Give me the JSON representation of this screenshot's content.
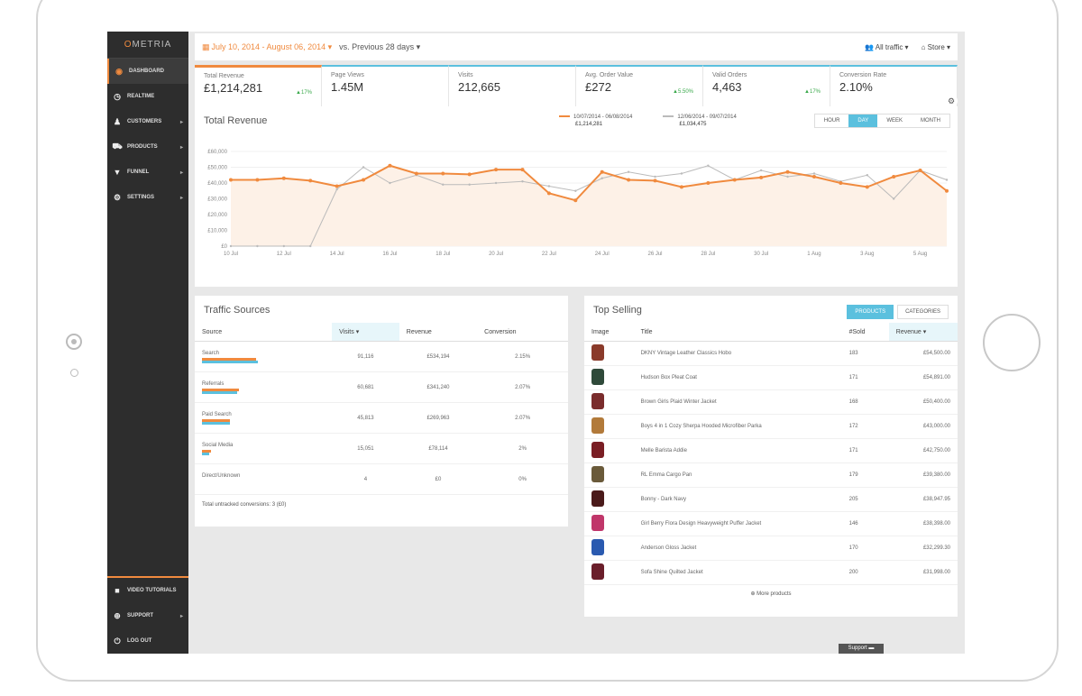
{
  "app": {
    "logo_prefix": "O",
    "logo_rest": "METRIA"
  },
  "sidebar": {
    "items": [
      {
        "label": "DASHBOARD",
        "icon": "dashboard-icon",
        "active": true,
        "caret": ""
      },
      {
        "label": "REALTIME",
        "icon": "clock-icon",
        "active": false,
        "caret": ""
      },
      {
        "label": "CUSTOMERS",
        "icon": "user-icon",
        "active": false,
        "caret": "▸"
      },
      {
        "label": "PRODUCTS",
        "icon": "cart-icon",
        "active": false,
        "caret": "▸"
      },
      {
        "label": "FUNNEL",
        "icon": "funnel-icon",
        "active": false,
        "caret": "▸"
      },
      {
        "label": "SETTINGS",
        "icon": "gear-icon",
        "active": false,
        "caret": "▸"
      }
    ],
    "bottom_items": [
      {
        "label": "VIDEO TUTORIALS",
        "icon": "video-icon",
        "caret": ""
      },
      {
        "label": "SUPPORT",
        "icon": "lifebuoy-icon",
        "caret": "▸"
      },
      {
        "label": "LOG OUT",
        "icon": "power-icon",
        "caret": ""
      }
    ]
  },
  "topbar": {
    "date_range": "July 10, 2014 - August 06, 2014 ▾",
    "comparison": "vs. Previous 28 days ▾",
    "traffic_filter": "All traffic ▾",
    "store_filter": "Store ▾"
  },
  "kpis": [
    {
      "label": "Total Revenue",
      "value": "£1,214,281",
      "change": "▲17%"
    },
    {
      "label": "Page Views",
      "value": "1.45M",
      "change": ""
    },
    {
      "label": "Visits",
      "value": "212,665",
      "change": ""
    },
    {
      "label": "Avg. Order Value",
      "value": "£272",
      "change": "▲5.50%"
    },
    {
      "label": "Valid Orders",
      "value": "4,463",
      "change": "▲17%"
    },
    {
      "label": "Conversion Rate",
      "value": "2.10%",
      "change": ""
    }
  ],
  "revenue_panel": {
    "title": "Total Revenue",
    "granularity": [
      {
        "label": "HOUR",
        "on": false
      },
      {
        "label": "DAY",
        "on": true
      },
      {
        "label": "WEEK",
        "on": false
      },
      {
        "label": "MONTH",
        "on": false
      }
    ],
    "legend": [
      {
        "range": "10/07/2014 - 06/08/2014",
        "total": "£1,214,281",
        "color": "#f08a3e"
      },
      {
        "range": "12/06/2014 - 09/07/2014",
        "total": "£1,034,475",
        "color": "#bbbbbb"
      }
    ]
  },
  "chart_data": {
    "type": "line",
    "title": "Total Revenue",
    "x": [
      "10 Jul",
      "11 Jul",
      "12 Jul",
      "13 Jul",
      "14 Jul",
      "15 Jul",
      "16 Jul",
      "17 Jul",
      "18 Jul",
      "19 Jul",
      "20 Jul",
      "21 Jul",
      "22 Jul",
      "23 Jul",
      "24 Jul",
      "25 Jul",
      "26 Jul",
      "27 Jul",
      "28 Jul",
      "29 Jul",
      "30 Jul",
      "31 Jul",
      "1 Aug",
      "2 Aug",
      "3 Aug",
      "4 Aug",
      "5 Aug",
      "6 Aug"
    ],
    "x_tick_labels": [
      "10 Jul",
      "12 Jul",
      "14 Jul",
      "16 Jul",
      "18 Jul",
      "20 Jul",
      "22 Jul",
      "24 Jul",
      "26 Jul",
      "28 Jul",
      "30 Jul",
      "1 Aug",
      "3 Aug",
      "5 Aug"
    ],
    "y_tick_labels": [
      "£0",
      "£10,000",
      "£20,000",
      "£30,000",
      "£40,000",
      "£50,000",
      "£60,000"
    ],
    "ylim": [
      0,
      60000
    ],
    "grid": true,
    "series": [
      {
        "name": "10/07/2014 - 06/08/2014",
        "color": "#f08a3e",
        "values": [
          42000,
          42000,
          43000,
          41500,
          38000,
          42000,
          51000,
          46000,
          46000,
          45500,
          48500,
          48500,
          33500,
          29000,
          47000,
          42000,
          41500,
          37500,
          40000,
          42000,
          43500,
          47000,
          44000,
          40000,
          37500,
          44000,
          48000,
          35000
        ]
      },
      {
        "name": "12/06/2014 - 09/07/2014",
        "color": "#bbbbbb",
        "values": [
          0,
          0,
          0,
          0,
          36000,
          50000,
          40000,
          45000,
          39000,
          39000,
          40000,
          41000,
          38000,
          35000,
          43000,
          47000,
          44000,
          46000,
          51000,
          42000,
          48000,
          44000,
          46000,
          41000,
          45000,
          30000,
          48000,
          42000
        ]
      }
    ]
  },
  "traffic_sources": {
    "title": "Traffic Sources",
    "headers": [
      "Source",
      "Visits ▾",
      "Revenue",
      "Conversion"
    ],
    "rows": [
      {
        "source": "Search",
        "visits": "91,116",
        "revenue": "£534,194",
        "conversion": "2.15%",
        "visit_share": 0.43,
        "revenue_share": 0.44
      },
      {
        "source": "Referrals",
        "visits": "60,681",
        "revenue": "£341,240",
        "conversion": "2.07%",
        "visit_share": 0.29,
        "revenue_share": 0.28
      },
      {
        "source": "Paid Search",
        "visits": "45,813",
        "revenue": "£269,963",
        "conversion": "2.07%",
        "visit_share": 0.22,
        "revenue_share": 0.22
      },
      {
        "source": "Social Media",
        "visits": "15,051",
        "revenue": "£78,114",
        "conversion": "2%",
        "visit_share": 0.07,
        "revenue_share": 0.06
      },
      {
        "source": "Direct/Unknown",
        "visits": "4",
        "revenue": "£0",
        "conversion": "0%",
        "visit_share": 0.0,
        "revenue_share": 0.0
      }
    ],
    "footer": "Total untracked conversions: 3 (£0)"
  },
  "top_selling": {
    "title": "Top Selling",
    "toggle": [
      {
        "label": "PRODUCTS",
        "on": true
      },
      {
        "label": "CATEGORIES",
        "on": false
      }
    ],
    "headers": [
      "Image",
      "Title",
      "#Sold",
      "Revenue ▾"
    ],
    "rows": [
      {
        "color": "#8a3a2a",
        "title": "DKNY Vintage Leather Classics Hobo",
        "sold": "183",
        "revenue": "£54,500.00"
      },
      {
        "color": "#2f4a3a",
        "title": "Hudson Box Pleat Coat",
        "sold": "171",
        "revenue": "£54,891.00"
      },
      {
        "color": "#7a2c2c",
        "title": "Brown Girls Plaid Winter Jacket",
        "sold": "168",
        "revenue": "£50,400.00"
      },
      {
        "color": "#b27a3a",
        "title": "Boys 4 in 1 Cozy Sherpa Hooded Microfiber Parka",
        "sold": "172",
        "revenue": "£43,000.00"
      },
      {
        "color": "#7a1e24",
        "title": "Melle Barista Addie",
        "sold": "171",
        "revenue": "£42,750.00"
      },
      {
        "color": "#6a5a3a",
        "title": "RL Emma Cargo Pan",
        "sold": "179",
        "revenue": "£39,380.00"
      },
      {
        "color": "#4a1a1a",
        "title": "Bonny - Dark Navy",
        "sold": "205",
        "revenue": "£38,947.95"
      },
      {
        "color": "#c0366a",
        "title": "Girl Berry Flora Design Heavyweight Puffer Jacket",
        "sold": "146",
        "revenue": "£38,398.00"
      },
      {
        "color": "#2a5ab0",
        "title": "Anderson Gloss Jacket",
        "sold": "170",
        "revenue": "£32,299.30"
      },
      {
        "color": "#6a1e2a",
        "title": "Sofa Shine Quilted Jacket",
        "sold": "200",
        "revenue": "£31,998.00"
      }
    ],
    "more": "⊕ More products"
  },
  "support_button": "Support"
}
